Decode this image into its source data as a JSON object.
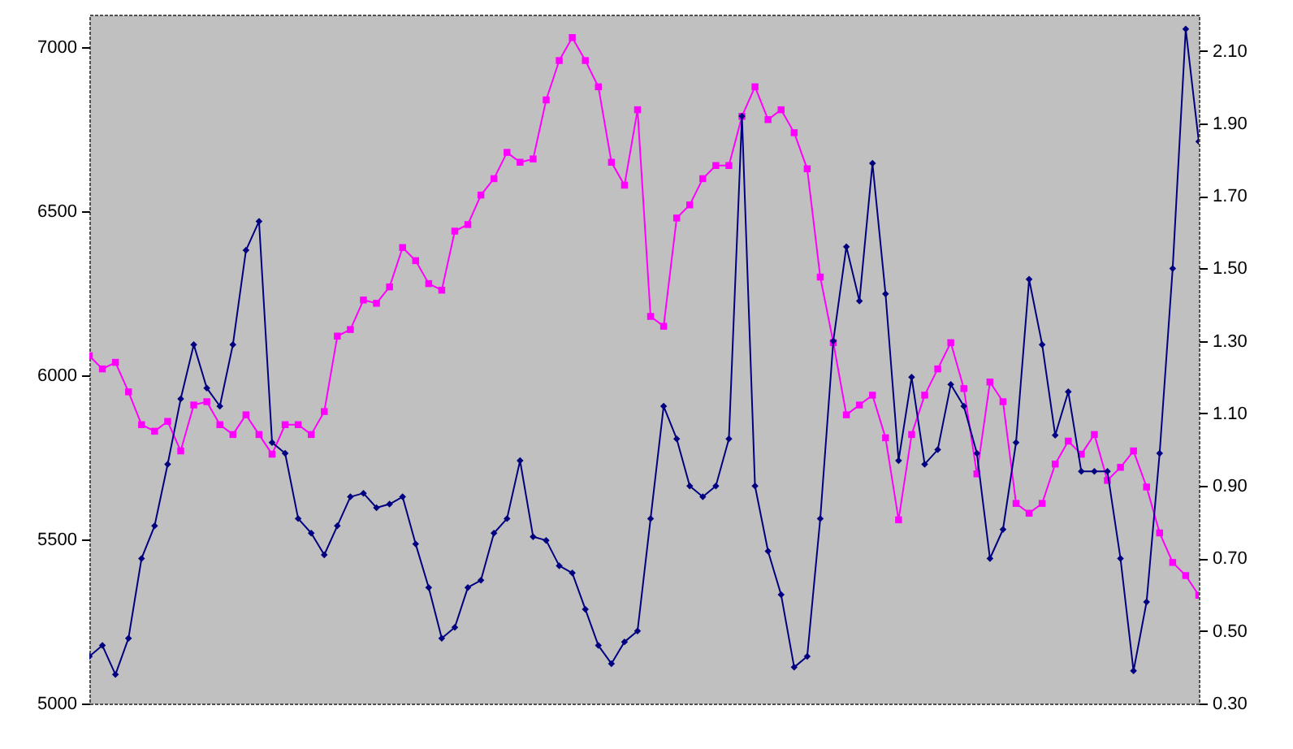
{
  "chart_data": {
    "type": "line",
    "categories": [
      null,
      null,
      null,
      null,
      null,
      null,
      null,
      null,
      null,
      null,
      null,
      null,
      null,
      null,
      null,
      null,
      null,
      null,
      null,
      null,
      null,
      null,
      null,
      null,
      null,
      null,
      null,
      null,
      null,
      null,
      null,
      null,
      null,
      null,
      null,
      null,
      null,
      null,
      null,
      null,
      null,
      null,
      null,
      null,
      null,
      null,
      null,
      null,
      null,
      null,
      null,
      null,
      null,
      null,
      null,
      null,
      null,
      null,
      null,
      null,
      null,
      null,
      null,
      null,
      null,
      null,
      null,
      null,
      null,
      null,
      null,
      null,
      null,
      null,
      null,
      null,
      null,
      null,
      null,
      null,
      null,
      null,
      null,
      null,
      null,
      null
    ],
    "ylim": [
      5000,
      7100
    ],
    "yticks": [
      5000,
      5500,
      6000,
      6500,
      7000
    ],
    "y2lim": [
      0.3,
      2.2
    ],
    "y2ticks": [
      {
        "value": 0.3,
        "label": "0.30"
      },
      {
        "value": 0.5,
        "label": "0.50"
      },
      {
        "value": 0.7,
        "label": "0.70"
      },
      {
        "value": 0.9,
        "label": "0.90"
      },
      {
        "value": 1.1,
        "label": "1.10"
      },
      {
        "value": 1.3,
        "label": "1.30"
      },
      {
        "value": 1.5,
        "label": "1.50"
      },
      {
        "value": 1.7,
        "label": "1.70"
      },
      {
        "value": 1.9,
        "label": "1.90"
      },
      {
        "value": 2.1,
        "label": "2.10"
      }
    ],
    "series": [
      {
        "color": "#ff00ff",
        "marker": "square",
        "values": [
          6060,
          6020,
          6040,
          5950,
          5850,
          5830,
          5860,
          5770,
          5910,
          5920,
          5850,
          5820,
          5880,
          5820,
          5760,
          5850,
          5850,
          5820,
          5890,
          6120,
          6140,
          6230,
          6220,
          6270,
          6390,
          6350,
          6280,
          6260,
          6440,
          6460,
          6550,
          6600,
          6680,
          6650,
          6660,
          6840,
          6960,
          7030,
          6960,
          6880,
          6650,
          6580,
          6810,
          6180,
          6150,
          6480,
          6520,
          6600,
          6640,
          6640,
          6790,
          6880,
          6780,
          6810,
          6740,
          6630,
          6300,
          6100,
          5880,
          5910,
          5940,
          5810,
          5560,
          5820,
          5940,
          6020,
          6100,
          5960,
          5700,
          5980,
          5920,
          5610,
          5580,
          5610,
          5730,
          5800,
          5760,
          5820,
          5680,
          5720,
          5770,
          5660,
          5520,
          5430,
          5390,
          5330
        ]
      },
      {
        "color": "#000080",
        "marker": "diamond",
        "axis": "y2",
        "values": [
          0.43,
          0.46,
          0.38,
          0.48,
          0.7,
          0.79,
          0.96,
          1.14,
          1.29,
          1.17,
          1.12,
          1.29,
          1.55,
          1.63,
          1.02,
          0.99,
          0.81,
          0.77,
          0.71,
          0.79,
          0.87,
          0.88,
          0.84,
          0.85,
          0.87,
          0.74,
          0.62,
          0.48,
          0.51,
          0.62,
          0.64,
          0.77,
          0.81,
          0.97,
          0.76,
          0.75,
          0.68,
          0.66,
          0.56,
          0.46,
          0.41,
          0.47,
          0.5,
          0.81,
          1.12,
          1.03,
          0.9,
          0.87,
          0.9,
          1.03,
          1.92,
          0.9,
          0.72,
          0.6,
          0.4,
          0.43,
          0.81,
          1.3,
          1.56,
          1.41,
          1.79,
          1.43,
          0.97,
          1.2,
          0.96,
          1.0,
          1.18,
          1.12,
          0.99,
          0.7,
          0.78,
          1.02,
          1.47,
          1.29,
          1.04,
          1.16,
          0.94,
          0.94,
          0.94,
          0.7,
          0.39,
          0.58,
          0.99,
          1.5,
          2.16,
          1.85
        ]
      }
    ]
  }
}
